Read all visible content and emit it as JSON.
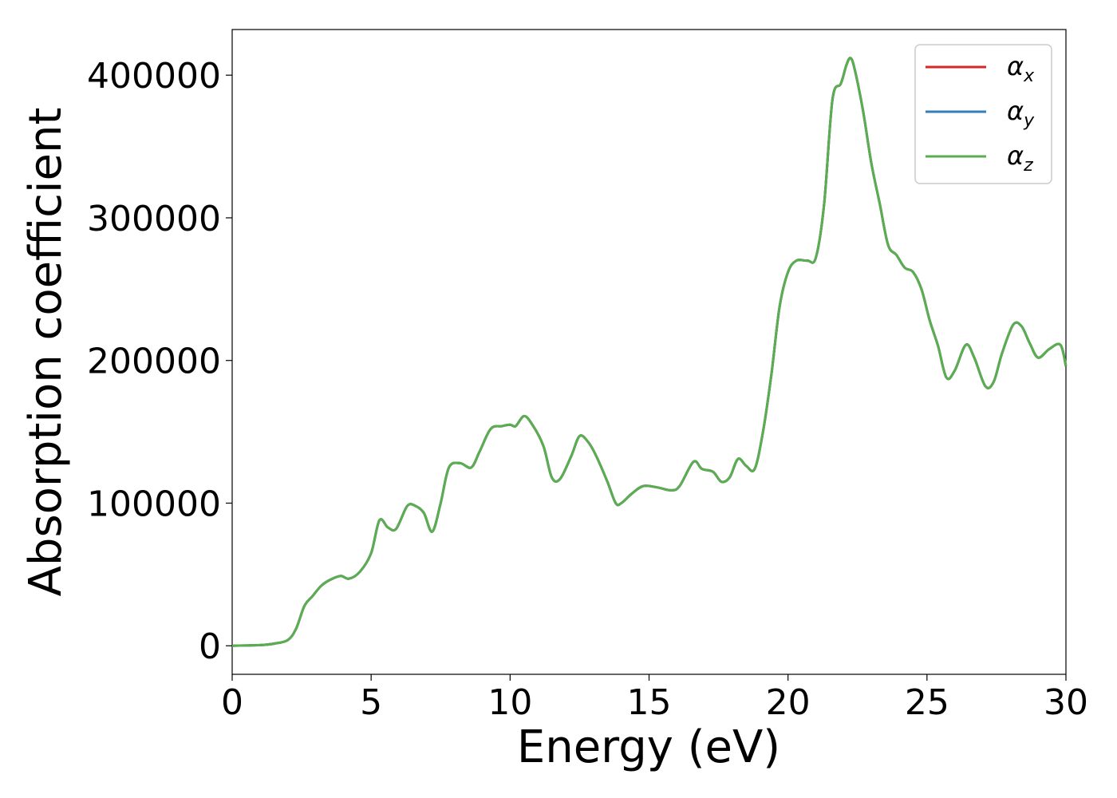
{
  "chart_data": {
    "type": "line",
    "title": "",
    "xlabel": "Energy (eV)",
    "ylabel": "Absorption coefficient",
    "xlim": [
      0,
      30
    ],
    "ylim": [
      -20000,
      432000
    ],
    "xticks": [
      0,
      5,
      10,
      15,
      20,
      25,
      30
    ],
    "xtick_labels": [
      "0",
      "5",
      "10",
      "15",
      "20",
      "25",
      "30"
    ],
    "yticks": [
      0,
      100000,
      200000,
      300000,
      400000
    ],
    "ytick_labels": [
      "0",
      "100000",
      "200000",
      "300000",
      "400000"
    ],
    "grid": false,
    "legend_position": "top-right",
    "series": [
      {
        "name": "α",
        "subscript": "x",
        "color": "#d62728"
      },
      {
        "name": "α",
        "subscript": "y",
        "color": "#377eb8"
      },
      {
        "name": "α",
        "subscript": "z",
        "color": "#5aae4f"
      }
    ],
    "x": [
      0,
      1,
      1.5,
      2,
      2.3,
      2.6,
      2.9,
      3.2,
      3.5,
      3.9,
      4.2,
      4.6,
      5.0,
      5.3,
      5.6,
      5.9,
      6.3,
      6.6,
      6.9,
      7.2,
      7.5,
      7.8,
      8.2,
      8.6,
      8.9,
      9.3,
      9.7,
      10.0,
      10.2,
      10.5,
      10.8,
      11.2,
      11.5,
      11.8,
      12.2,
      12.5,
      12.8,
      13.1,
      13.5,
      13.8,
      14.0,
      14.4,
      14.8,
      15.3,
      15.8,
      16.1,
      16.6,
      16.9,
      17.3,
      17.6,
      17.9,
      18.2,
      18.5,
      18.8,
      19.1,
      19.4,
      19.7,
      20.0,
      20.3,
      20.7,
      21.0,
      21.3,
      21.6,
      21.9,
      22.1,
      22.25,
      22.4,
      22.7,
      23.0,
      23.3,
      23.6,
      23.9,
      24.2,
      24.5,
      24.8,
      25.1,
      25.4,
      25.7,
      26.0,
      26.4,
      26.7,
      27.1,
      27.4,
      27.7,
      28.1,
      28.4,
      28.7,
      29.0,
      29.4,
      29.8,
      30.0
    ],
    "values": [
      0,
      500,
      1500,
      4000,
      12000,
      28000,
      35000,
      42000,
      46000,
      49000,
      47000,
      52000,
      65000,
      88000,
      83000,
      82000,
      98000,
      98000,
      93000,
      80000,
      100000,
      125000,
      128000,
      125000,
      136000,
      152000,
      154000,
      155000,
      154000,
      161000,
      155000,
      140000,
      118000,
      117000,
      133000,
      147000,
      143000,
      133000,
      115000,
      100000,
      100000,
      107000,
      112000,
      111000,
      109000,
      112000,
      129000,
      124000,
      122000,
      115000,
      118000,
      131000,
      126000,
      124000,
      150000,
      190000,
      238000,
      262000,
      270000,
      270000,
      272000,
      310000,
      383000,
      394000,
      407000,
      412000,
      404000,
      375000,
      338000,
      310000,
      281000,
      274000,
      265000,
      262000,
      250000,
      228000,
      210000,
      188000,
      193000,
      211000,
      202000,
      182000,
      185000,
      205000,
      225000,
      224000,
      212000,
      202000,
      208000,
      211000,
      196000
    ]
  }
}
